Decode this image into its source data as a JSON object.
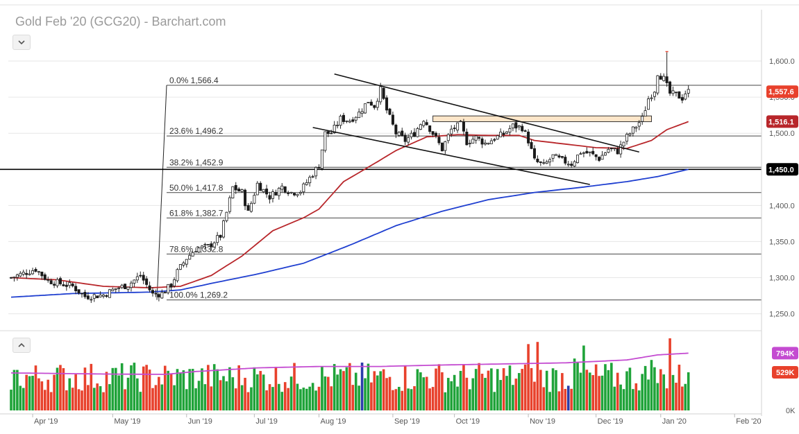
{
  "header": {
    "title": "Gold Feb '20 (GCG20) - Barchart.com"
  },
  "chart_data": {
    "type": "candlestick",
    "title": "Gold Feb '20 (GCG20) - Barchart.com",
    "price_axis": {
      "ylim": [
        1240,
        1625
      ],
      "ticks": [
        "1,250.0",
        "1,300.0",
        "1,350.0",
        "1,400.0",
        "1,450.0",
        "1,500.0",
        "1,550.0",
        "1,600.0"
      ],
      "tick_values": [
        1250,
        1300,
        1350,
        1400,
        1450,
        1500,
        1550,
        1600
      ],
      "badges": [
        {
          "label": "1,557.6",
          "value": 1557.6,
          "color": "#e8412c"
        },
        {
          "label": "1,516.1",
          "value": 1516.1,
          "color": "#b8262a"
        },
        {
          "label": "1,450.0",
          "value": 1450.0,
          "color": "#000000"
        }
      ]
    },
    "x_axis": {
      "labels": [
        "Apr '19",
        "May '19",
        "Jun '19",
        "Jul '19",
        "Aug '19",
        "Sep '19",
        "Oct '19",
        "Nov '19",
        "Dec '19",
        "Jan '20",
        "Feb '20"
      ]
    },
    "fibonacci": [
      {
        "label": "0.0% 1,566.4",
        "value": 1566.4
      },
      {
        "label": "23.6% 1,496.2",
        "value": 1496.2
      },
      {
        "label": "38.2% 1,452.9",
        "value": 1452.9
      },
      {
        "label": "50.0% 1,417.8",
        "value": 1417.8
      },
      {
        "label": "61.8% 1,382.7",
        "value": 1382.7
      },
      {
        "label": "78.6% 1,332.8",
        "value": 1332.8
      },
      {
        "label": "100.0% 1,269.2",
        "value": 1269.2
      }
    ],
    "horizontal_level": {
      "value": 1450.0
    },
    "channel": {
      "upper": [
        {
          "bar": 105,
          "price": 1582
        },
        {
          "bar": 204,
          "price": 1474
        }
      ],
      "lower": [
        {
          "bar": 98,
          "price": 1508
        },
        {
          "bar": 188,
          "price": 1429
        }
      ]
    },
    "resistance_zone": {
      "from_bar": 137,
      "to_bar": 208,
      "low": 1516,
      "high": 1524
    },
    "price_waypoints": [
      [
        0,
        1300
      ],
      [
        8,
        1312
      ],
      [
        12,
        1296
      ],
      [
        20,
        1288
      ],
      [
        24,
        1274
      ],
      [
        30,
        1276
      ],
      [
        34,
        1285
      ],
      [
        38,
        1290
      ],
      [
        42,
        1303
      ],
      [
        46,
        1277
      ],
      [
        49,
        1278
      ],
      [
        52,
        1290
      ],
      [
        54,
        1308
      ],
      [
        57,
        1327
      ],
      [
        60,
        1340
      ],
      [
        64,
        1343
      ],
      [
        68,
        1358
      ],
      [
        70,
        1390
      ],
      [
        72,
        1425
      ],
      [
        75,
        1418
      ],
      [
        77,
        1390
      ],
      [
        80,
        1430
      ],
      [
        84,
        1412
      ],
      [
        88,
        1426
      ],
      [
        91,
        1418
      ],
      [
        94,
        1420
      ],
      [
        97,
        1438
      ],
      [
        100,
        1456
      ],
      [
        102,
        1500
      ],
      [
        104,
        1500
      ],
      [
        107,
        1520
      ],
      [
        110,
        1518
      ],
      [
        113,
        1528
      ],
      [
        116,
        1545
      ],
      [
        118,
        1538
      ],
      [
        120,
        1560
      ],
      [
        122,
        1532
      ],
      [
        125,
        1500
      ],
      [
        128,
        1490
      ],
      [
        131,
        1500
      ],
      [
        134,
        1520
      ],
      [
        137,
        1500
      ],
      [
        140,
        1478
      ],
      [
        143,
        1505
      ],
      [
        146,
        1512
      ],
      [
        148,
        1488
      ],
      [
        151,
        1494
      ],
      [
        154,
        1486
      ],
      [
        157,
        1493
      ],
      [
        160,
        1499
      ],
      [
        163,
        1510
      ],
      [
        166,
        1508
      ],
      [
        168,
        1490
      ],
      [
        170,
        1462
      ],
      [
        173,
        1455
      ],
      [
        176,
        1468
      ],
      [
        179,
        1462
      ],
      [
        182,
        1458
      ],
      [
        185,
        1474
      ],
      [
        188,
        1472
      ],
      [
        191,
        1465
      ],
      [
        194,
        1478
      ],
      [
        197,
        1475
      ],
      [
        200,
        1495
      ],
      [
        203,
        1510
      ],
      [
        205,
        1520
      ],
      [
        207,
        1548
      ],
      [
        209,
        1560
      ],
      [
        210,
        1584
      ],
      [
        212,
        1575
      ],
      [
        214,
        1555
      ],
      [
        216,
        1553
      ],
      [
        218,
        1549
      ],
      [
        219,
        1556
      ],
      [
        220,
        1557.6
      ]
    ],
    "ma_red_waypoints": [
      [
        0,
        1300
      ],
      [
        15,
        1297
      ],
      [
        30,
        1288
      ],
      [
        45,
        1286
      ],
      [
        55,
        1288
      ],
      [
        65,
        1303
      ],
      [
        75,
        1330
      ],
      [
        85,
        1365
      ],
      [
        95,
        1383
      ],
      [
        100,
        1395
      ],
      [
        108,
        1433
      ],
      [
        118,
        1458
      ],
      [
        125,
        1476
      ],
      [
        135,
        1495
      ],
      [
        145,
        1498
      ],
      [
        155,
        1497
      ],
      [
        165,
        1497
      ],
      [
        170,
        1490
      ],
      [
        180,
        1485
      ],
      [
        190,
        1480
      ],
      [
        200,
        1479
      ],
      [
        208,
        1490
      ],
      [
        213,
        1505
      ],
      [
        220,
        1516.1
      ]
    ],
    "ma_blue_waypoints": [
      [
        0,
        1273
      ],
      [
        20,
        1278
      ],
      [
        45,
        1280
      ],
      [
        55,
        1283
      ],
      [
        65,
        1292
      ],
      [
        80,
        1305
      ],
      [
        95,
        1320
      ],
      [
        110,
        1345
      ],
      [
        125,
        1372
      ],
      [
        140,
        1392
      ],
      [
        155,
        1408
      ],
      [
        170,
        1418
      ],
      [
        185,
        1425
      ],
      [
        200,
        1433
      ],
      [
        210,
        1440
      ],
      [
        220,
        1450
      ]
    ],
    "volume": {
      "labels": [
        "794K",
        "529K",
        "0K"
      ],
      "avg_line_value": 794,
      "last_value": 529,
      "max_value": 1000,
      "colors": {
        "up": "#1fa339",
        "down": "#e8412c",
        "special": "#2a3caa"
      }
    },
    "colors": {
      "up": "#1fa339",
      "down": "#e8412c",
      "ma_red": "#b8262a",
      "ma_blue": "#1f3fd0",
      "fib_line": "#444444",
      "channel": "#111111",
      "zone_fill": "#fde6c9",
      "zone_stroke": "#333333",
      "volume_avg": "#c44bd1",
      "grid": "#e6e6e6"
    }
  }
}
